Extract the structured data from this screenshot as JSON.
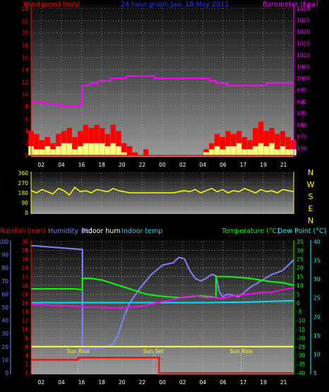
{
  "chart_data": [
    {
      "id": "wind_baro",
      "type": "line",
      "title": "24 hour graph Jau, 18 May 2011",
      "ylabel_left": "Windspeed (m/s)",
      "ylabel_right": "Barometer (hpa)",
      "left_ticks": [
        "0",
        "2",
        "4",
        "6",
        "8",
        "10",
        "12",
        "14",
        "16",
        "18",
        "20",
        "22",
        "24"
      ],
      "right_ticks": [
        "970",
        "975",
        "980",
        "985",
        "990",
        "995",
        "1000",
        "1005",
        "1010",
        "1015",
        "1020",
        "1025",
        "1030"
      ],
      "x_ticks": [
        "02",
        "04",
        "16",
        "18",
        "20",
        "22",
        "00",
        "02",
        "04",
        "06",
        "17",
        "19",
        "21"
      ],
      "ylim_left": [
        0,
        24
      ],
      "ylim_right": [
        967,
        1030
      ],
      "xlim_hours": [
        0,
        24
      ],
      "barometer": {
        "name": "Barometer (hpa)",
        "color": "#ff00ff",
        "x": [
          0,
          1.2,
          1.2,
          2.6,
          2.6,
          4.4,
          4.4,
          4.7,
          4.7,
          5.4,
          5.4,
          6.2,
          6.2,
          7.3,
          7.3,
          8.7,
          8.7,
          11.3,
          11.3,
          16.3,
          16.3,
          16.9,
          16.9,
          17.9,
          17.9,
          21.5,
          21.5,
          22.5,
          22.5,
          24
        ],
        "y": [
          990,
          990,
          989,
          989,
          988,
          988,
          989,
          989,
          997,
          997,
          998,
          998,
          999,
          999,
          1000,
          1000,
          1001,
          1001,
          1000,
          1000,
          999,
          999,
          998,
          998,
          997,
          997,
          998,
          998,
          998,
          998
        ]
      },
      "wind_gust": {
        "name": "Gust (m/s)",
        "color": "#ff0000",
        "x": [
          0,
          0.5,
          1,
          1.5,
          2,
          2.5,
          3,
          3.5,
          4,
          4.5,
          5,
          5.5,
          6,
          6.5,
          7,
          7.5,
          8,
          8.5,
          9,
          9.5,
          10,
          10.5,
          11,
          11.5,
          12,
          12.5,
          13,
          13.5,
          14,
          14.5,
          15,
          15.5,
          16,
          16.5,
          17,
          17.5,
          18,
          18.5,
          19,
          19.5,
          20,
          20.5,
          21,
          21.5,
          22,
          22.5,
          23,
          23.5,
          24
        ],
        "y": [
          4,
          3.5,
          2.5,
          3,
          2,
          3.5,
          4,
          4.5,
          3,
          4,
          5,
          4.5,
          5,
          4.5,
          3.5,
          5,
          4,
          2,
          1.5,
          0.5,
          0,
          1,
          0,
          0,
          0,
          0,
          0,
          0,
          0,
          0,
          0,
          0,
          1,
          2,
          3.5,
          3,
          4,
          3.5,
          4,
          3,
          2.5,
          4.5,
          5.5,
          4,
          4.5,
          3.5,
          4,
          3,
          2.5
        ]
      },
      "wind_avg": {
        "name": "Average (m/s)",
        "color": "#ffff80",
        "x": [
          0,
          0.5,
          1,
          1.5,
          2,
          2.5,
          3,
          3.5,
          4,
          4.5,
          5,
          5.5,
          6,
          6.5,
          7,
          7.5,
          8,
          8.5,
          9,
          9.5,
          10,
          10.5,
          11,
          11.5,
          12,
          12.5,
          13,
          13.5,
          14,
          14.5,
          15,
          15.5,
          16,
          16.5,
          17,
          17.5,
          18,
          18.5,
          19,
          19.5,
          20,
          20.5,
          21,
          21.5,
          22,
          22.5,
          23,
          23.5,
          24
        ],
        "y": [
          1.5,
          1,
          1,
          1.5,
          1,
          1.5,
          2,
          2,
          1,
          1.5,
          2,
          2,
          2,
          2,
          1.5,
          2,
          1.5,
          0.5,
          0,
          0,
          0,
          0,
          0,
          0,
          0,
          0,
          0,
          0,
          0,
          0,
          0,
          0,
          0.5,
          1,
          1.5,
          1,
          1.5,
          1.5,
          2,
          1,
          1,
          1.5,
          2,
          1.5,
          2,
          1,
          1.5,
          1,
          1
        ]
      }
    },
    {
      "id": "wind_dir",
      "type": "line",
      "ylabel_right": "N W S E N",
      "right_letters": [
        "N",
        "W",
        "S",
        "E",
        "N"
      ],
      "left_ticks": [
        "0",
        "90",
        "180",
        "270",
        "360"
      ],
      "x_ticks": [
        "02",
        "04",
        "16",
        "18",
        "20",
        "22",
        "00",
        "02",
        "04",
        "06",
        "17",
        "19",
        "21"
      ],
      "ylim": [
        0,
        360
      ],
      "xlim_hours": [
        0,
        24
      ],
      "direction": {
        "name": "Wind direction",
        "color": "#ffff00",
        "x": [
          0,
          0.5,
          1,
          1.5,
          2,
          2.5,
          3,
          3.5,
          4,
          4.5,
          5,
          5.5,
          6,
          6.5,
          7,
          7.5,
          8,
          8.5,
          9,
          13,
          14,
          14.5,
          15,
          15.5,
          16,
          16.5,
          17,
          17.5,
          18,
          18.5,
          19,
          19.5,
          20,
          20.5,
          21,
          21.5,
          22,
          22.5,
          23,
          23.5,
          24
        ],
        "y": [
          200,
          180,
          210,
          190,
          170,
          220,
          200,
          160,
          230,
          190,
          200,
          180,
          210,
          200,
          190,
          220,
          200,
          190,
          180,
          180,
          200,
          190,
          210,
          180,
          200,
          220,
          190,
          210,
          180,
          200,
          190,
          220,
          200,
          180,
          210,
          190,
          200,
          180,
          210,
          200,
          190
        ]
      }
    },
    {
      "id": "rain_hum_temp",
      "type": "line",
      "labels_top": {
        "rainfall": "Rainfall (mm)",
        "humidity": "Humidity (%)",
        "indoor_hum": "Indoor hum",
        "indoor_temp": "Indoor temp",
        "temperature": "Temperature (°C)",
        "dewpoint": "Dew Point (°C)"
      },
      "humidity_ticks": [
        "0",
        "10",
        "20",
        "30",
        "40",
        "50",
        "60",
        "70",
        "80",
        "90",
        "100"
      ],
      "rain_ticks": [
        "0",
        "2",
        "4",
        "6",
        "8",
        "10",
        "12",
        "14",
        "16",
        "18",
        "20",
        "22",
        "24",
        "26",
        "28",
        "30"
      ],
      "temp_ticks": [
        "-40",
        "-35",
        "-30",
        "-25",
        "-20",
        "-15",
        "-10",
        "-5",
        "0",
        "5",
        "10",
        "15",
        "20",
        "25",
        "30",
        "35"
      ],
      "dew_ticks": [
        "5",
        "10",
        "15",
        "20",
        "25",
        "30",
        "35",
        "40"
      ],
      "x_ticks": [
        "02",
        "04",
        "16",
        "18",
        "20",
        "22",
        "00",
        "02",
        "04",
        "06",
        "17",
        "19",
        "21"
      ],
      "xlim_hours": [
        0,
        24
      ],
      "ylim_humidity": [
        0,
        100
      ],
      "ylim_temperature": [
        -40,
        35
      ],
      "annotations": [
        {
          "text": "Sun Rise",
          "x": 4.3
        },
        {
          "text": "Sun Set",
          "x": 11.2
        },
        {
          "text": "Sun Rise",
          "x": 19.2
        }
      ],
      "series": [
        {
          "name": "Humidity (%)",
          "color": "#8080ff",
          "axis": "humidity",
          "x": [
            0,
            4.7,
            4.7,
            6.5,
            7.5,
            8,
            8.5,
            9,
            10,
            11,
            12,
            13,
            13.5,
            14,
            14.5,
            15,
            15.5,
            16,
            16.5,
            16.9,
            17.2,
            17.5,
            18,
            19,
            20,
            21,
            22,
            23,
            24
          ],
          "y": [
            97,
            94,
            18,
            19,
            22,
            30,
            43,
            53,
            65,
            75,
            82,
            84,
            88,
            87,
            78,
            72,
            70,
            72,
            75,
            74,
            62,
            58,
            60,
            58,
            65,
            70,
            75,
            78,
            86
          ]
        },
        {
          "name": "Indoor hum",
          "color": "#ffff60",
          "axis": "humidity",
          "x": [
            0,
            24
          ],
          "y": [
            20,
            20
          ]
        },
        {
          "name": "Indoor temp",
          "color": "#00e0ff",
          "axis": "humidity",
          "x": [
            0,
            4,
            8,
            12,
            16,
            20,
            24
          ],
          "y": [
            53.5,
            53.5,
            53.5,
            53.5,
            53.5,
            54,
            55
          ]
        },
        {
          "name": "Rainfall (mm)",
          "color": "#ff0000",
          "axis": "rain",
          "x": [
            0,
            4.3,
            4.3,
            11.7,
            11.7,
            24
          ],
          "y": [
            3,
            3,
            3.5,
            3.5,
            0,
            0
          ]
        },
        {
          "name": "Temperature (°C)",
          "color": "#00ff00",
          "axis": "temperature",
          "x": [
            0,
            1,
            2,
            3,
            4,
            4.7,
            4.7,
            5.5,
            6.5,
            7.5,
            8.5,
            9.5,
            10.5,
            11.5,
            12.5,
            13.5,
            14.5,
            15.5,
            16.5,
            16.9,
            16.9,
            18,
            19,
            20,
            21,
            22,
            23,
            24
          ],
          "y": [
            8,
            8,
            8,
            8,
            8,
            7.5,
            14,
            14,
            13,
            11,
            9,
            7,
            5,
            4,
            3.5,
            3,
            3.5,
            4,
            3.5,
            3,
            15,
            15,
            14.5,
            14,
            13,
            12,
            11.5,
            10
          ]
        },
        {
          "name": "Dew Point (°C)",
          "color": "#ff00ff",
          "axis": "temperature",
          "x": [
            0,
            1,
            2,
            3,
            4,
            4.7,
            4.7,
            6,
            8,
            10,
            11.5,
            13,
            14,
            15,
            16,
            16.9,
            17.5,
            18.5,
            20,
            21,
            22,
            23,
            24
          ],
          "y": [
            -1,
            -1,
            -1.5,
            -1.5,
            -2,
            -2,
            -2.5,
            -2.5,
            -3,
            -2,
            0,
            2,
            3.5,
            4,
            3,
            3,
            2.5,
            4,
            5,
            6,
            6,
            7.5,
            8.5
          ]
        }
      ]
    }
  ]
}
